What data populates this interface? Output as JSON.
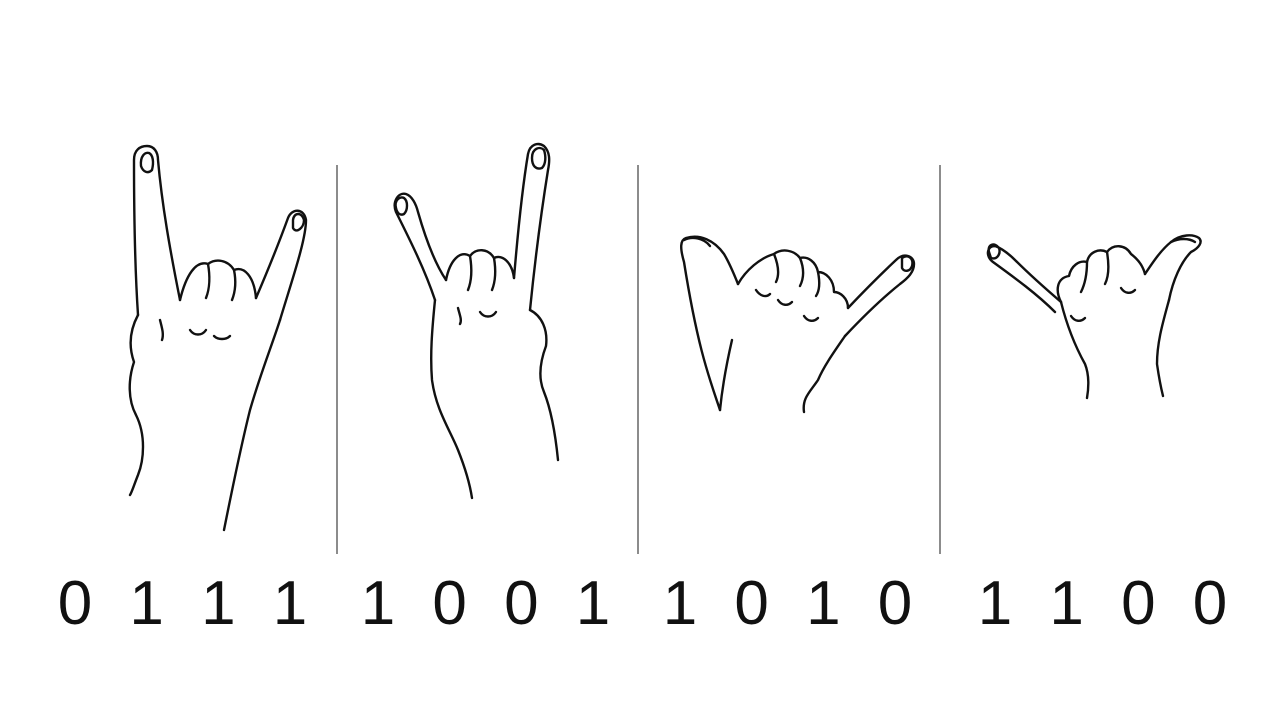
{
  "gestures": [
    {
      "icon": "rock-horns-hand-icon",
      "bits": [
        "0",
        "1",
        "1",
        "1"
      ]
    },
    {
      "icon": "rock-horns-hand-mirrored-icon",
      "bits": [
        "1",
        "0",
        "0",
        "1"
      ]
    },
    {
      "icon": "shaka-hand-icon",
      "bits": [
        "1",
        "0",
        "1",
        "0"
      ]
    },
    {
      "icon": "shaka-hand-mirrored-icon",
      "bits": [
        "1",
        "1",
        "0",
        "0"
      ]
    }
  ],
  "colors": {
    "line": "#111111",
    "divider": "#8c8c8c",
    "background": "#ffffff"
  }
}
